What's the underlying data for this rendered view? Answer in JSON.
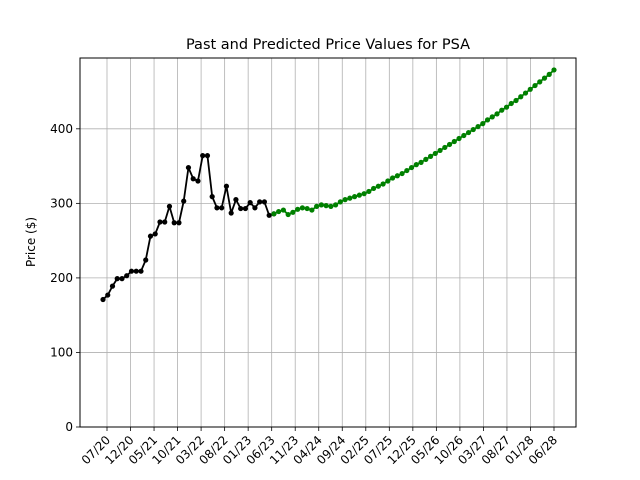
{
  "chart_data": {
    "type": "line",
    "title": "Past and Predicted Price Values for PSA",
    "xlabel": "",
    "ylabel": "Price ($)",
    "x_tick_labels": [
      "07/20",
      "12/20",
      "05/21",
      "10/21",
      "03/22",
      "08/22",
      "01/23",
      "06/23",
      "11/23",
      "04/24",
      "09/24",
      "02/25",
      "07/25",
      "12/25",
      "05/26",
      "10/26",
      "03/27",
      "08/27",
      "01/28",
      "06/28"
    ],
    "y_ticks": [
      0,
      100,
      200,
      300,
      400
    ],
    "ylim": [
      0,
      495
    ],
    "grid": true,
    "legend": "none",
    "series": [
      {
        "color": "#000000",
        "values": [
          171,
          177,
          189,
          199,
          199,
          203,
          209,
          209,
          209,
          224,
          256,
          259,
          275,
          275,
          296,
          274,
          274,
          303,
          348,
          333,
          330,
          364,
          364,
          309,
          294,
          294,
          323,
          287,
          305,
          293,
          293,
          301,
          294,
          302,
          302,
          284,
          286
        ]
      },
      {
        "color": "#008000",
        "values": [
          286,
          289,
          291,
          285,
          288,
          292,
          294,
          293,
          291,
          296,
          298,
          297,
          296,
          298,
          302,
          305,
          307,
          309,
          311,
          313,
          316,
          320,
          323,
          326,
          330,
          334,
          337,
          340,
          344,
          348,
          352,
          355,
          359,
          363,
          367,
          371,
          375,
          379,
          383,
          387,
          391,
          395,
          399,
          403,
          407,
          412,
          416,
          420,
          425,
          429,
          434,
          438,
          443,
          448,
          453,
          458,
          463,
          468,
          473,
          479
        ]
      }
    ]
  }
}
